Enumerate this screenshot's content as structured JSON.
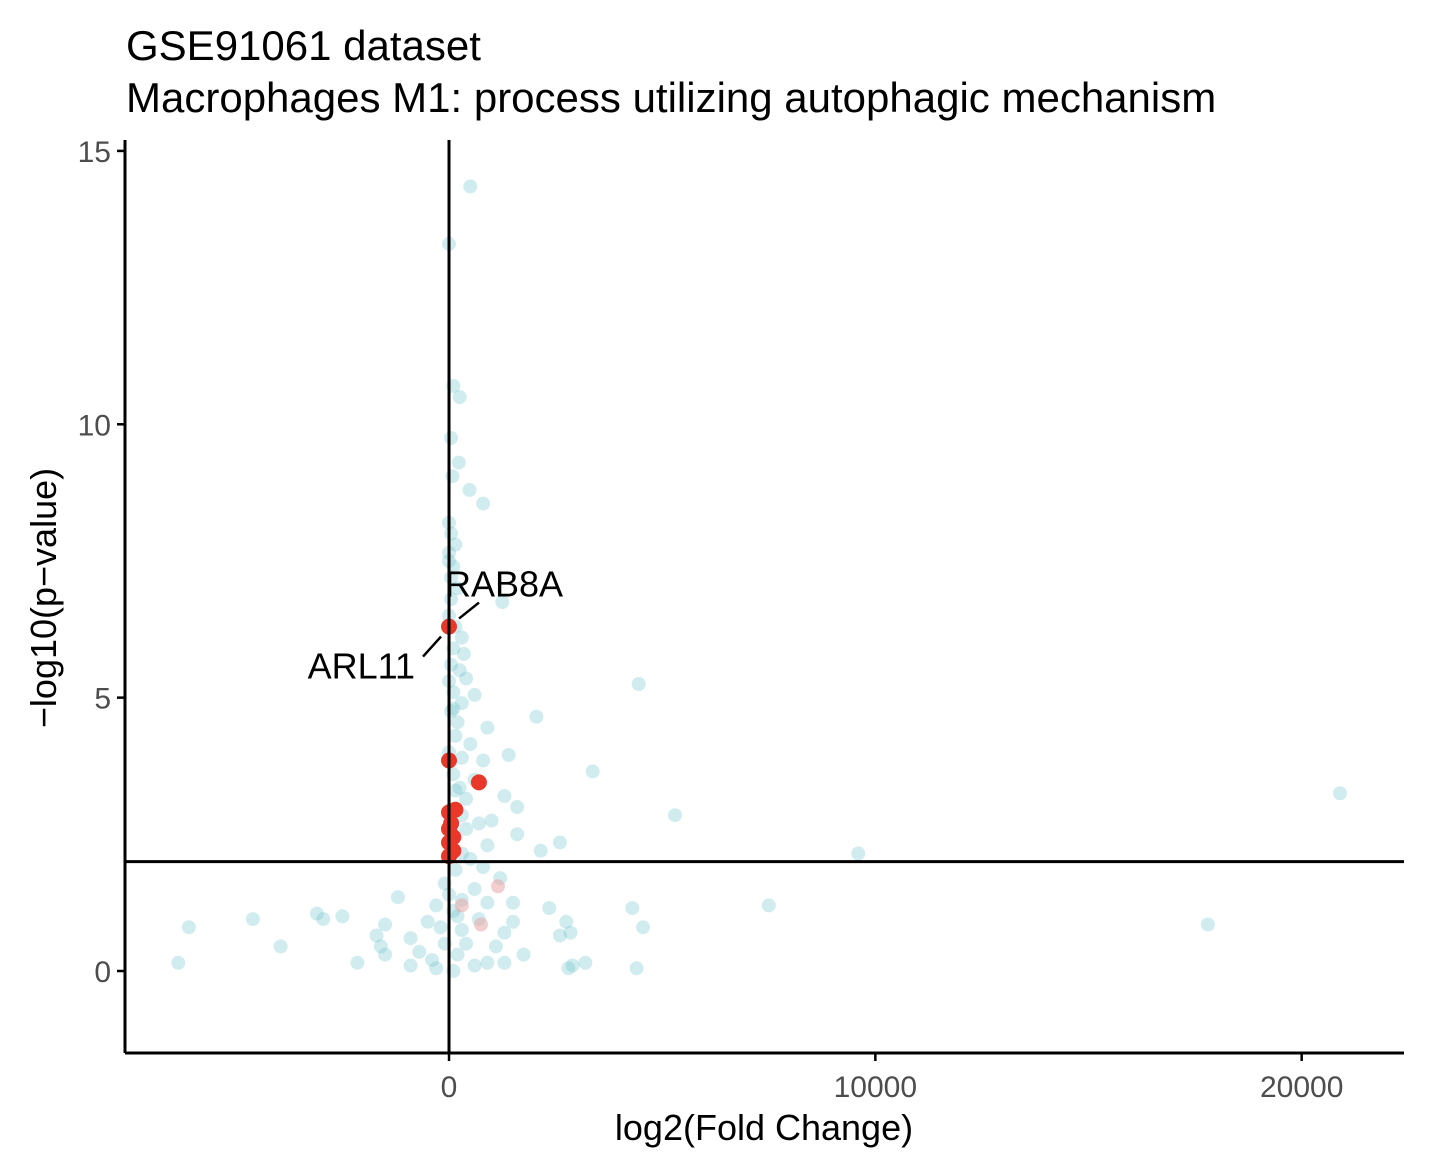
{
  "chart_data": {
    "type": "scatter",
    "title": "GSE91061 dataset",
    "subtitle": "Macrophages M1: process utilizing autophagic mechanism",
    "xlabel": "log2(Fold Change)",
    "ylabel": "−log10(p−value)",
    "xlim": [
      -7600,
      22400
    ],
    "ylim": [
      -1.5,
      15.2
    ],
    "x_ticks": [
      0,
      10000,
      20000
    ],
    "x_tick_labels": [
      "0",
      "10000",
      "20000"
    ],
    "y_ticks": [
      0,
      5,
      10,
      15
    ],
    "y_tick_labels": [
      "0",
      "5",
      "10",
      "15"
    ],
    "reference_lines": {
      "vertical_x": 0,
      "horizontal_y": 2
    },
    "grid": false,
    "colors": {
      "background_gene": "#5bbcc4",
      "highlight_gene": "#e8382a",
      "nonsig_highlight": "#e8a8a6",
      "axis": "#000000"
    },
    "series": [
      {
        "role": "background",
        "points": [
          [
            500,
            14.35
          ],
          [
            0,
            13.3
          ],
          [
            100,
            10.7
          ],
          [
            250,
            10.5
          ],
          [
            50,
            9.75
          ],
          [
            230,
            9.3
          ],
          [
            80,
            9.05
          ],
          [
            480,
            8.8
          ],
          [
            800,
            8.55
          ],
          [
            0,
            8.2
          ],
          [
            50,
            8.0
          ],
          [
            150,
            7.8
          ],
          [
            0,
            7.65
          ],
          [
            100,
            7.4
          ],
          [
            50,
            7.2
          ],
          [
            200,
            7.0
          ],
          [
            1250,
            6.75
          ],
          [
            0,
            6.5
          ],
          [
            150,
            6.3
          ],
          [
            300,
            6.1
          ],
          [
            100,
            5.9
          ],
          [
            350,
            5.8
          ],
          [
            50,
            5.6
          ],
          [
            250,
            5.5
          ],
          [
            400,
            5.35
          ],
          [
            4450,
            5.25
          ],
          [
            100,
            5.1
          ],
          [
            600,
            5.05
          ],
          [
            300,
            4.9
          ],
          [
            50,
            4.75
          ],
          [
            2050,
            4.65
          ],
          [
            200,
            4.55
          ],
          [
            900,
            4.45
          ],
          [
            150,
            4.3
          ],
          [
            500,
            4.15
          ],
          [
            1400,
            3.95
          ],
          [
            300,
            3.9
          ],
          [
            800,
            3.85
          ],
          [
            3370,
            3.65
          ],
          [
            100,
            3.6
          ],
          [
            600,
            3.5
          ],
          [
            250,
            3.35
          ],
          [
            1300,
            3.2
          ],
          [
            400,
            3.15
          ],
          [
            1600,
            3.0
          ],
          [
            50,
            2.95
          ],
          [
            300,
            2.85
          ],
          [
            5300,
            2.85
          ],
          [
            1000,
            2.75
          ],
          [
            700,
            2.7
          ],
          [
            400,
            2.6
          ],
          [
            1600,
            2.5
          ],
          [
            100,
            2.45
          ],
          [
            2600,
            2.35
          ],
          [
            900,
            2.3
          ],
          [
            2150,
            2.2
          ],
          [
            9600,
            2.15
          ],
          [
            20900,
            3.25
          ],
          [
            300,
            2.15
          ],
          [
            500,
            2.05
          ],
          [
            800,
            1.9
          ],
          [
            150,
            1.85
          ],
          [
            1200,
            1.7
          ],
          [
            -100,
            1.6
          ],
          [
            600,
            1.5
          ],
          [
            -1200,
            1.35
          ],
          [
            300,
            1.3
          ],
          [
            900,
            1.25
          ],
          [
            1500,
            1.25
          ],
          [
            2350,
            1.15
          ],
          [
            4300,
            1.15
          ],
          [
            7500,
            1.2
          ],
          [
            -300,
            1.2
          ],
          [
            100,
            1.1
          ],
          [
            -3100,
            1.05
          ],
          [
            -2500,
            1.0
          ],
          [
            -4600,
            0.95
          ],
          [
            -2950,
            0.95
          ],
          [
            700,
            0.95
          ],
          [
            1500,
            0.9
          ],
          [
            2750,
            0.9
          ],
          [
            -1500,
            0.85
          ],
          [
            -6100,
            0.8
          ],
          [
            4550,
            0.8
          ],
          [
            17800,
            0.85
          ],
          [
            -200,
            0.8
          ],
          [
            300,
            0.75
          ],
          [
            -1700,
            0.65
          ],
          [
            1300,
            0.7
          ],
          [
            2600,
            0.65
          ],
          [
            2850,
            0.7
          ],
          [
            -900,
            0.6
          ],
          [
            -3950,
            0.45
          ],
          [
            -1600,
            0.45
          ],
          [
            400,
            0.5
          ],
          [
            1100,
            0.45
          ],
          [
            -1500,
            0.3
          ],
          [
            1750,
            0.3
          ],
          [
            -700,
            0.35
          ],
          [
            200,
            0.3
          ],
          [
            -400,
            0.2
          ],
          [
            -2150,
            0.15
          ],
          [
            1300,
            0.15
          ],
          [
            2900,
            0.1
          ],
          [
            3200,
            0.15
          ],
          [
            -6350,
            0.15
          ],
          [
            4400,
            0.05
          ],
          [
            2800,
            0.05
          ],
          [
            -900,
            0.1
          ],
          [
            600,
            0.1
          ],
          [
            -300,
            0.05
          ],
          [
            100,
            0.0
          ],
          [
            900,
            0.15
          ],
          [
            -100,
            0.5
          ],
          [
            -500,
            0.9
          ],
          [
            0,
            1.4
          ],
          [
            200,
            1.0
          ],
          [
            50,
            2.6
          ],
          [
            150,
            3.3
          ],
          [
            0,
            4.0
          ],
          [
            100,
            4.8
          ],
          [
            0,
            5.3
          ],
          [
            50,
            6.8
          ],
          [
            0,
            7.5
          ]
        ]
      },
      {
        "role": "highlight",
        "points": [
          [
            0,
            6.3
          ],
          [
            0,
            3.85
          ],
          [
            700,
            3.45
          ],
          [
            150,
            2.95
          ],
          [
            0,
            2.9
          ],
          [
            50,
            2.7
          ],
          [
            0,
            2.6
          ],
          [
            100,
            2.45
          ],
          [
            0,
            2.35
          ],
          [
            100,
            2.2
          ],
          [
            0,
            2.1
          ]
        ]
      },
      {
        "role": "highlight-nonsignificant",
        "points": [
          [
            1150,
            1.55
          ],
          [
            300,
            1.2
          ],
          [
            750,
            0.85
          ]
        ]
      }
    ],
    "annotations": [
      {
        "label": "RAB8A",
        "x": 0,
        "y": 6.3,
        "anchor": "right-above"
      },
      {
        "label": "ARL11",
        "x": 0,
        "y": 6.3,
        "anchor": "left-below"
      }
    ]
  }
}
